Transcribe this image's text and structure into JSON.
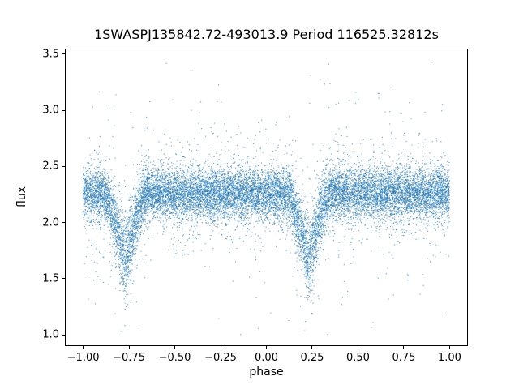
{
  "chart_data": {
    "type": "scatter",
    "title": "1SWASPJ135842.72-493013.9 Period 116525.32812s",
    "xlabel": "phase",
    "ylabel": "flux",
    "xlim": [
      -1.1,
      1.1
    ],
    "ylim": [
      0.9,
      3.55
    ],
    "xticks": [
      {
        "value": -1.0,
        "label": "−1.00"
      },
      {
        "value": -0.75,
        "label": "−0.75"
      },
      {
        "value": -0.5,
        "label": "−0.50"
      },
      {
        "value": -0.25,
        "label": "−0.25"
      },
      {
        "value": 0.0,
        "label": "0.00"
      },
      {
        "value": 0.25,
        "label": "0.25"
      },
      {
        "value": 0.5,
        "label": "0.50"
      },
      {
        "value": 0.75,
        "label": "0.75"
      },
      {
        "value": 1.0,
        "label": "1.00"
      }
    ],
    "yticks": [
      {
        "value": 1.0,
        "label": "1.0"
      },
      {
        "value": 1.5,
        "label": "1.5"
      },
      {
        "value": 2.0,
        "label": "2.0"
      },
      {
        "value": 2.5,
        "label": "2.5"
      },
      {
        "value": 3.0,
        "label": "3.0"
      },
      {
        "value": 3.5,
        "label": "3.5"
      }
    ],
    "grid": false,
    "legend": "none",
    "background": "#ffffff",
    "axis_color": "#000000",
    "marker_color": "#1f77b4",
    "marker_size_px": 1.2,
    "marker_alpha": 0.6,
    "n_points": 16000,
    "series_model": {
      "x_range": [
        -1.0,
        1.0
      ],
      "baseline_flux": 2.26,
      "noise_sigma_core": 0.11,
      "noise_sigma_mid": 0.24,
      "noise_sigma_outlier": 0.5,
      "frac_core": 0.85,
      "frac_mid": 0.115,
      "eclipse_centers": [
        -0.77,
        0.23
      ],
      "eclipse_depth": 0.6,
      "eclipse_half_width": 0.115,
      "eclipse_shape_power": 1.3,
      "eclipse_extra_scatter": 0.6,
      "flux_min": 1.0,
      "flux_max": 3.45,
      "seed": 42
    }
  }
}
